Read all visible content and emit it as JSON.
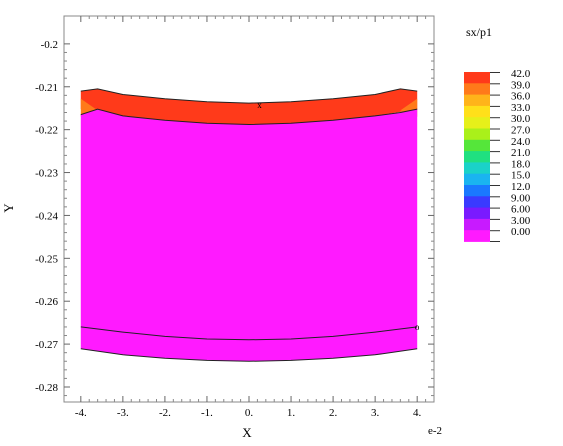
{
  "chart_data": {
    "type": "heatmap",
    "title": "",
    "xlabel": "X",
    "ylabel": "Y",
    "x_multiplier_label": "e-2",
    "xlim": [
      -4.4,
      4.4
    ],
    "ylim": [
      -0.2835,
      -0.1935
    ],
    "x_ticks": [
      {
        "value": -4,
        "label": "-4."
      },
      {
        "value": -3,
        "label": "-3."
      },
      {
        "value": -2,
        "label": "-2."
      },
      {
        "value": -1,
        "label": "-1."
      },
      {
        "value": 0,
        "label": "0."
      },
      {
        "value": 1,
        "label": "1."
      },
      {
        "value": 2,
        "label": "2."
      },
      {
        "value": 3,
        "label": "3."
      },
      {
        "value": 4,
        "label": "4."
      }
    ],
    "y_ticks": [
      {
        "value": -0.2,
        "label": "-0.2"
      },
      {
        "value": -0.21,
        "label": "-0.21"
      },
      {
        "value": -0.22,
        "label": "-0.22"
      },
      {
        "value": -0.23,
        "label": "-0.23"
      },
      {
        "value": -0.24,
        "label": "-0.24"
      },
      {
        "value": -0.25,
        "label": "-0.25"
      },
      {
        "value": -0.26,
        "label": "-0.26"
      },
      {
        "value": -0.27,
        "label": "-0.27"
      },
      {
        "value": -0.28,
        "label": "-0.28"
      }
    ],
    "legend": {
      "title": "sx/p1",
      "placement": "right",
      "levels": [
        {
          "label": "42.0",
          "color": "#ff3a1a"
        },
        {
          "label": "39.0",
          "color": "#ff7a1a"
        },
        {
          "label": "36.0",
          "color": "#ffb41a"
        },
        {
          "label": "33.0",
          "color": "#ffe01a"
        },
        {
          "label": "30.0",
          "color": "#e6f01a"
        },
        {
          "label": "27.0",
          "color": "#aaf01a"
        },
        {
          "label": "24.0",
          "color": "#55e63a"
        },
        {
          "label": "21.0",
          "color": "#20e080"
        },
        {
          "label": "18.0",
          "color": "#1ad2c8"
        },
        {
          "label": "15.0",
          "color": "#1ab4f0"
        },
        {
          "label": "12.0",
          "color": "#1a78ff"
        },
        {
          "label": "9.00",
          "color": "#3a3aff"
        },
        {
          "label": "6.00",
          "color": "#7a1aff"
        },
        {
          "label": "3.00",
          "color": "#c81aff"
        },
        {
          "label": "0.00",
          "color": "#ff1aff"
        }
      ]
    },
    "regions": [
      {
        "level": "42.0",
        "color": "#ff3a1a",
        "outline": [
          [
            -4.0,
            -0.211
          ],
          [
            -3.6,
            -0.2105
          ],
          [
            -3.0,
            -0.2118
          ],
          [
            -2.0,
            -0.2128
          ],
          [
            -1.0,
            -0.2135
          ],
          [
            0.0,
            -0.2138
          ],
          [
            1.0,
            -0.2135
          ],
          [
            2.0,
            -0.2128
          ],
          [
            3.0,
            -0.2118
          ],
          [
            3.6,
            -0.2105
          ],
          [
            4.0,
            -0.211
          ],
          [
            4.0,
            -0.2152
          ],
          [
            3.0,
            -0.2168
          ],
          [
            2.0,
            -0.2178
          ],
          [
            1.0,
            -0.2185
          ],
          [
            0.0,
            -0.2188
          ],
          [
            -1.0,
            -0.2185
          ],
          [
            -2.0,
            -0.2178
          ],
          [
            -3.0,
            -0.2168
          ],
          [
            -4.0,
            -0.2152
          ]
        ]
      },
      {
        "level": "39.0",
        "color": "#ff7a1a",
        "outline": [
          [
            -4.0,
            -0.2128
          ],
          [
            -3.6,
            -0.2155
          ],
          [
            -4.0,
            -0.217
          ]
        ]
      },
      {
        "level": "39.0",
        "color": "#ff7a1a",
        "outline": [
          [
            4.0,
            -0.2128
          ],
          [
            3.6,
            -0.2155
          ],
          [
            4.0,
            -0.217
          ]
        ]
      },
      {
        "level": "0.00",
        "color": "#ff1aff",
        "outline": [
          [
            -4.0,
            -0.2165
          ],
          [
            -3.6,
            -0.2152
          ],
          [
            -3.0,
            -0.2168
          ],
          [
            -2.0,
            -0.2178
          ],
          [
            -1.0,
            -0.2185
          ],
          [
            0.0,
            -0.2188
          ],
          [
            1.0,
            -0.2185
          ],
          [
            2.0,
            -0.2178
          ],
          [
            3.0,
            -0.2168
          ],
          [
            3.6,
            -0.216
          ],
          [
            4.0,
            -0.2152
          ],
          [
            4.0,
            -0.2711
          ],
          [
            3.0,
            -0.2725
          ],
          [
            2.0,
            -0.2733
          ],
          [
            1.0,
            -0.2738
          ],
          [
            0.0,
            -0.274
          ],
          [
            -1.0,
            -0.2738
          ],
          [
            -2.0,
            -0.2733
          ],
          [
            -3.0,
            -0.2725
          ],
          [
            -4.0,
            -0.2711
          ]
        ]
      }
    ],
    "curves": [
      {
        "points": [
          [
            -4.0,
            -0.211
          ],
          [
            -3.6,
            -0.2105
          ],
          [
            -3.0,
            -0.2118
          ],
          [
            -2.0,
            -0.2128
          ],
          [
            -1.0,
            -0.2135
          ],
          [
            0.0,
            -0.2138
          ],
          [
            1.0,
            -0.2135
          ],
          [
            2.0,
            -0.2128
          ],
          [
            3.0,
            -0.2118
          ],
          [
            3.6,
            -0.2105
          ],
          [
            4.0,
            -0.211
          ]
        ]
      },
      {
        "points": [
          [
            -4.0,
            -0.2165
          ],
          [
            -3.6,
            -0.2152
          ],
          [
            -3.0,
            -0.2168
          ],
          [
            -2.0,
            -0.2178
          ],
          [
            -1.0,
            -0.2185
          ],
          [
            0.0,
            -0.2188
          ],
          [
            1.0,
            -0.2185
          ],
          [
            2.0,
            -0.2178
          ],
          [
            3.0,
            -0.2168
          ],
          [
            3.6,
            -0.216
          ],
          [
            4.0,
            -0.2152
          ]
        ]
      },
      {
        "points": [
          [
            -4.0,
            -0.266
          ],
          [
            -3.0,
            -0.2672
          ],
          [
            -2.0,
            -0.2682
          ],
          [
            -1.0,
            -0.2688
          ],
          [
            0.0,
            -0.269
          ],
          [
            1.0,
            -0.2688
          ],
          [
            2.0,
            -0.2682
          ],
          [
            3.0,
            -0.2672
          ],
          [
            4.0,
            -0.266
          ]
        ]
      },
      {
        "points": [
          [
            -4.0,
            -0.2711
          ],
          [
            -3.0,
            -0.2725
          ],
          [
            -2.0,
            -0.2733
          ],
          [
            -1.0,
            -0.2738
          ],
          [
            0.0,
            -0.274
          ],
          [
            1.0,
            -0.2738
          ],
          [
            2.0,
            -0.2733
          ],
          [
            3.0,
            -0.2725
          ],
          [
            4.0,
            -0.2711
          ]
        ]
      }
    ],
    "markers": [
      {
        "x": 0.25,
        "y": -0.2143,
        "label": "x"
      },
      {
        "x": 4.0,
        "y": -0.266,
        "label": "o"
      }
    ],
    "grid": false
  }
}
